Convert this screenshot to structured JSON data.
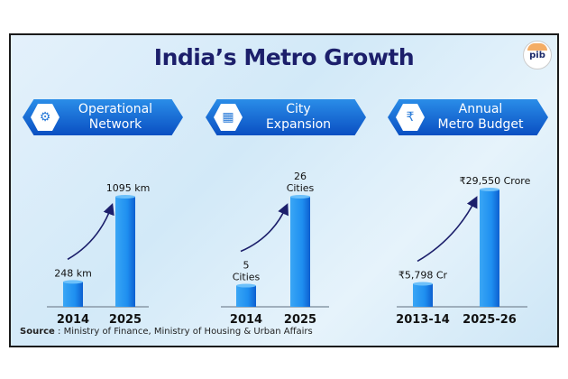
{
  "title": "India’s Metro Growth",
  "logo_text": "pib",
  "source": {
    "label": "Source",
    "text": "Ministry of Finance, Ministry of Housing & Urban Affairs"
  },
  "colors": {
    "title": "#1c1f6b",
    "bar": "#1e8ff0",
    "banner": "#0a4fc2",
    "arrow": "#1c1f6b"
  },
  "banners": [
    {
      "lines": [
        "Operational",
        "Network"
      ],
      "icon": "network-icon"
    },
    {
      "lines": [
        "City",
        "Expansion"
      ],
      "icon": "city-buildings-icon"
    },
    {
      "lines": [
        "Annual",
        "Metro Budget"
      ],
      "icon": "budget-icon"
    }
  ],
  "chart_data": [
    {
      "type": "bar",
      "categories": [
        "2014",
        "2025"
      ],
      "values": [
        248,
        1095
      ],
      "unit": "km",
      "data_labels": [
        [
          "248 km"
        ],
        [
          "1095 km"
        ]
      ]
    },
    {
      "type": "bar",
      "categories": [
        "2014",
        "2025"
      ],
      "values": [
        5,
        26
      ],
      "unit": "Cities",
      "data_labels": [
        [
          "5",
          "Cities"
        ],
        [
          "26",
          "Cities"
        ]
      ]
    },
    {
      "type": "bar",
      "categories": [
        "2013-14",
        "2025-26"
      ],
      "values": [
        5798,
        29550
      ],
      "unit": "₹ Crore",
      "data_labels": [
        [
          "₹5,798 Cr"
        ],
        [
          "₹29,550 Crore"
        ]
      ]
    }
  ]
}
